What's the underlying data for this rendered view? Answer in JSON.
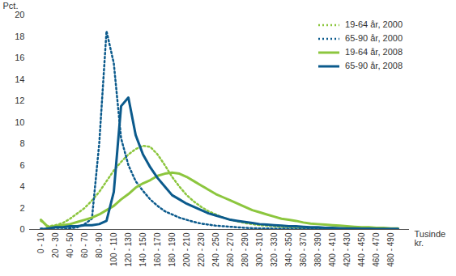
{
  "chart_data": {
    "type": "line",
    "y_label": "Pct.",
    "x_label": "Tusinde kr.",
    "categories": [
      "0 - 10",
      null,
      "20 - 30",
      null,
      "40 - 50",
      null,
      "60 - 70",
      null,
      "80 - 90",
      null,
      "100 - 110",
      null,
      "120 - 130",
      null,
      "140 - 150",
      null,
      "160 - 170",
      null,
      "180 - 190",
      null,
      "200 - 210",
      null,
      "220 - 230",
      null,
      "240 - 250",
      null,
      "260 - 270",
      null,
      "280 - 290",
      null,
      "300 - 310",
      null,
      "320 - 330",
      null,
      "340 - 350",
      null,
      "360 - 370",
      null,
      "380 - 390",
      null,
      "400 - 410",
      null,
      "420 - 430",
      null,
      "440 - 450",
      null,
      "460 - 470",
      null,
      "480 - 490",
      null
    ],
    "series": [
      {
        "name": "19-64 år, 2000",
        "color": "#8cc63e",
        "line_style": "dotted",
        "values": [
          0.8,
          0.3,
          0.4,
          0.6,
          1,
          1.5,
          2,
          2.7,
          3.5,
          4.5,
          5.5,
          6.3,
          7,
          7.5,
          7.8,
          7.7,
          7,
          6,
          4.9,
          4,
          3.2,
          2.6,
          2.1,
          1.7,
          1.4,
          1.1,
          0.9,
          0.75,
          0.6,
          0.5,
          0.4,
          0.35,
          0.3,
          0.25,
          0.22,
          0.2,
          0.17,
          0.15,
          0.13,
          0.12,
          0.1,
          0.09,
          0.08,
          0.07,
          0.06,
          0.05,
          0.05,
          0.04,
          0.04,
          0.03
        ]
      },
      {
        "name": "65-90 år, 2000",
        "color": "#0b5a8c",
        "line_style": "dotted",
        "values": [
          0.1,
          0,
          0,
          0,
          0.1,
          0.2,
          0.5,
          1,
          8,
          18.5,
          15.5,
          8.5,
          6,
          4.5,
          3.6,
          2.8,
          2.2,
          1.7,
          1.4,
          1.1,
          0.9,
          0.7,
          0.55,
          0.45,
          0.35,
          0.3,
          0.25,
          0.2,
          0.15,
          0.12,
          0.1,
          0.1,
          0.08,
          0.08,
          0.06,
          0.06,
          0.05,
          0.05,
          0.04,
          0.04,
          0.03,
          0.03,
          0.03,
          0.02,
          0.02,
          0.02,
          0.02,
          0.01,
          0.01,
          0.01
        ]
      },
      {
        "name": "19-64 år, 2008",
        "color": "#8cc63e",
        "line_style": "solid",
        "values": [
          0.9,
          0.2,
          0.3,
          0.4,
          0.5,
          0.7,
          0.9,
          1.1,
          1.4,
          1.8,
          2.2,
          2.8,
          3.3,
          3.9,
          4.3,
          4.6,
          5,
          5.2,
          5.3,
          5.2,
          4.9,
          4.5,
          4.1,
          3.7,
          3.3,
          3,
          2.7,
          2.4,
          2.1,
          1.8,
          1.6,
          1.4,
          1.2,
          1,
          0.9,
          0.8,
          0.65,
          0.55,
          0.5,
          0.45,
          0.4,
          0.35,
          0.3,
          0.25,
          0.2,
          0.2,
          0.15,
          0.15,
          0.1,
          0.1
        ]
      },
      {
        "name": "65-90 år, 2008",
        "color": "#0b5a8c",
        "line_style": "solid",
        "values": [
          0,
          0.1,
          0.2,
          0.2,
          0.3,
          0.3,
          0.4,
          0.4,
          0.5,
          0.8,
          3.5,
          11.5,
          12.3,
          8.8,
          7,
          5.8,
          4.8,
          4,
          3.2,
          2.8,
          2.4,
          2.1,
          1.8,
          1.5,
          1.3,
          1.1,
          0.9,
          0.8,
          0.7,
          0.6,
          0.5,
          0.45,
          0.4,
          0.35,
          0.3,
          0.3,
          0.25,
          0.2,
          0.2,
          0.15,
          0.15,
          0.12,
          0.1,
          0.1,
          0.08,
          0.08,
          0.06,
          0.06,
          0.05,
          0.05
        ]
      }
    ],
    "ylim": [
      0,
      20
    ],
    "yticks": [
      0,
      2,
      4,
      6,
      8,
      10,
      12,
      14,
      16,
      18,
      20
    ],
    "grid": false,
    "legend": "top-right"
  }
}
